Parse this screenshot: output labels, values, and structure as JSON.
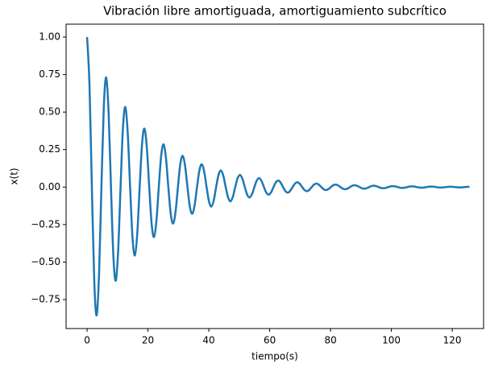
{
  "chart_data": {
    "type": "line",
    "title": "Vibración libre amortiguada, amortiguamiento subcrítico",
    "xlabel": "tiempo(s)",
    "ylabel": "x(t)",
    "x": [
      0,
      0.79,
      1.57,
      2.36,
      3.14,
      3.93,
      4.71,
      5.5,
      6.28,
      7.07,
      7.85,
      8.64,
      9.42,
      10.21,
      11.0,
      11.78,
      12.57,
      13.35,
      14.14,
      14.92,
      15.71,
      16.49,
      17.28,
      18.06,
      18.85,
      19.63,
      20.42,
      21.21,
      21.99,
      22.78,
      23.56,
      24.35,
      25.13,
      25.92,
      26.7,
      27.49,
      28.27,
      29.06,
      29.85,
      30.63,
      31.42,
      32.2,
      32.99,
      33.77,
      34.56,
      35.34,
      36.13,
      36.91,
      37.7,
      38.48,
      39.27,
      40.06,
      40.84,
      41.63,
      42.41,
      43.2,
      43.98,
      44.77,
      45.55,
      46.34,
      47.12,
      47.91,
      48.69,
      49.48,
      50.27,
      51.05,
      51.84,
      52.62,
      53.41,
      54.19,
      54.98,
      55.76,
      56.55,
      57.33,
      58.12,
      58.9,
      59.69,
      60.48,
      61.26,
      62.05,
      62.83,
      63.62,
      64.4,
      65.19,
      65.97,
      66.76,
      67.54,
      68.33,
      69.12,
      69.9,
      70.69,
      71.47,
      72.26,
      73.04,
      73.83,
      74.61,
      75.4,
      76.18,
      76.97,
      77.75,
      78.54,
      79.33,
      80.11,
      80.9,
      81.68,
      82.47,
      83.25,
      84.04,
      84.82,
      85.61,
      86.39,
      87.18,
      87.96,
      88.75,
      89.54,
      90.32,
      91.11,
      91.89,
      92.68,
      93.46,
      94.25,
      95.03,
      95.82,
      96.6,
      97.39,
      98.17,
      98.96,
      99.75,
      100.53,
      101.32,
      102.1,
      102.89,
      103.67,
      104.46,
      105.24,
      106.03,
      106.81,
      107.6,
      108.38,
      109.17,
      109.96,
      110.74,
      111.53,
      112.31,
      113.1,
      113.88,
      114.67,
      115.45,
      116.24,
      117.02,
      117.81,
      118.6,
      119.38,
      120.17,
      120.95,
      121.74,
      122.52,
      123.31,
      124.09,
      124.88,
      125.66
    ],
    "series": [
      {
        "color": "#1f77b4",
        "values": [
          1,
          0.68,
          0,
          -0.629,
          -0.855,
          -0.581,
          0,
          0.537,
          0.7304,
          0.4966,
          0,
          -0.4591,
          -0.6243,
          -0.4244,
          0,
          0.3924,
          0.5335,
          0.3627,
          0,
          -0.3353,
          -0.456,
          -0.31,
          0,
          0.2866,
          0.3897,
          0.265,
          0,
          -0.2449,
          -0.3331,
          -0.2265,
          0,
          0.2093,
          0.2846,
          0.1935,
          0,
          -0.1789,
          -0.2432,
          -0.1654,
          0,
          0.1529,
          0.2079,
          0.1414,
          0,
          -0.1307,
          -0.1777,
          -0.1208,
          0,
          0.1117,
          0.1518,
          0.1032,
          0,
          -0.0954,
          -0.1297,
          -0.0882,
          0,
          0.0815,
          0.1109,
          0.0754,
          0,
          -0.0697,
          -0.0948,
          -0.0644,
          0,
          0.0596,
          0.081,
          0.0551,
          0,
          -0.0509,
          -0.0692,
          -0.0471,
          0,
          0.0435,
          0.0592,
          0.0402,
          0,
          -0.0372,
          -0.0506,
          -0.0344,
          0,
          0.0318,
          0.0432,
          0.0294,
          0,
          -0.0272,
          -0.0369,
          -0.0251,
          0,
          0.0232,
          0.0316,
          0.0215,
          0,
          -0.0199,
          -0.027,
          -0.0184,
          0,
          0.017,
          0.0231,
          0.0157,
          0,
          -0.0145,
          -0.0197,
          -0.0134,
          0,
          0.0124,
          0.0168,
          0.0114,
          0,
          -0.0106,
          -0.0144,
          -0.0098,
          0,
          0.009,
          0.0123,
          0.0084,
          0,
          -0.0077,
          -0.0105,
          -0.0071,
          0,
          0.0066,
          0.009,
          0.0061,
          0,
          -0.0057,
          -0.0077,
          -0.0052,
          0,
          0.0048,
          0.0066,
          0.0045,
          0,
          -0.0041,
          -0.0056,
          -0.0038,
          0,
          0.0035,
          0.0048,
          0.0033,
          0,
          -0.003,
          -0.0041,
          -0.0028,
          0,
          0.0026,
          0.0035,
          0.0024,
          0,
          -0.0022,
          -0.003,
          -0.002,
          0,
          0.0019,
          0.0026,
          0.0018,
          0,
          -0.0016,
          -0.0022,
          -0.0015,
          0,
          0.0014,
          0.0019
        ]
      }
    ],
    "xlim": [
      -6.9,
      130.3
    ],
    "ylim": [
      -0.943,
      1.086
    ],
    "xticks": [
      0,
      20,
      40,
      60,
      80,
      100,
      120
    ],
    "yticks": [
      {
        "value": -0.75,
        "label": "−0.75"
      },
      {
        "value": -0.5,
        "label": "−0.50"
      },
      {
        "value": -0.25,
        "label": "−0.25"
      },
      {
        "value": 0,
        "label": "0.00"
      },
      {
        "value": 0.25,
        "label": "0.25"
      },
      {
        "value": 0.5,
        "label": "0.50"
      },
      {
        "value": 0.75,
        "label": "0.75"
      },
      {
        "value": 1,
        "label": "1.00"
      }
    ],
    "grid": false
  }
}
